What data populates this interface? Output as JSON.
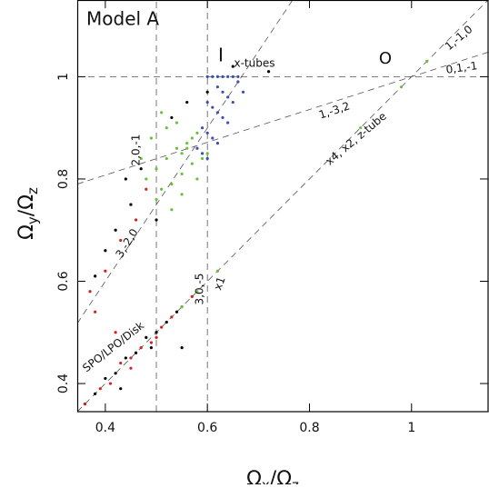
{
  "chart_data": {
    "type": "scatter",
    "title": "Model A",
    "xlabel": [
      "Ω",
      "x",
      "/Ω",
      "z"
    ],
    "ylabel": [
      "Ω",
      "y",
      "/Ω",
      "z"
    ],
    "xlim": [
      0.345,
      1.15
    ],
    "ylim": [
      0.345,
      1.15
    ],
    "xticks": [
      0.4,
      0.6,
      0.8,
      1
    ],
    "yticks": [
      0.4,
      0.6,
      0.8,
      1
    ],
    "lines": [
      {
        "x": [
          0.5,
          0.5
        ],
        "y": [
          0.345,
          1.15
        ]
      },
      {
        "x": [
          0.6,
          0.6
        ],
        "y": [
          0.345,
          1.15
        ]
      },
      {
        "x": [
          0.345,
          1.15
        ],
        "y": [
          1,
          1
        ]
      },
      {
        "x": [
          0.345,
          1.15
        ],
        "y": [
          0.345,
          1.15
        ]
      },
      {
        "x": [
          0.345,
          1.15
        ],
        "y": [
          0.79,
          1.048
        ]
      },
      {
        "x": [
          0.345,
          0.767
        ],
        "y": [
          0.5175,
          1.15
        ]
      }
    ],
    "annotations": [
      "I",
      "x-tubes",
      "O",
      "1,-1,0",
      "0,1,-1",
      "1,-3,2",
      "x4, x2, z-tube",
      "2,0,-1",
      "3,-2,0",
      "3,0,-5",
      "x1",
      "SPO/LPO/Disk"
    ],
    "series": [
      {
        "color": "#000000",
        "x": [
          0.36,
          0.38,
          0.4,
          0.42,
          0.44,
          0.46,
          0.48,
          0.5,
          0.52,
          0.54,
          0.42,
          0.45,
          0.4,
          0.44,
          0.47,
          0.5,
          0.53,
          0.56,
          0.6,
          0.65,
          0.72,
          0.38,
          0.43,
          0.55,
          0.49
        ],
        "y": [
          0.36,
          0.38,
          0.41,
          0.42,
          0.45,
          0.46,
          0.49,
          0.5,
          0.52,
          0.54,
          0.7,
          0.75,
          0.66,
          0.8,
          0.82,
          0.72,
          0.92,
          0.95,
          0.97,
          1.02,
          1.01,
          0.61,
          0.39,
          0.47,
          0.47
        ]
      },
      {
        "color": "#d42020",
        "x": [
          0.36,
          0.39,
          0.41,
          0.43,
          0.45,
          0.47,
          0.49,
          0.51,
          0.53,
          0.55,
          0.57,
          0.38,
          0.4,
          0.43,
          0.46,
          0.48,
          0.37,
          0.42,
          0.45,
          0.5
        ],
        "y": [
          0.36,
          0.39,
          0.4,
          0.44,
          0.45,
          0.47,
          0.48,
          0.51,
          0.53,
          0.55,
          0.57,
          0.54,
          0.62,
          0.68,
          0.72,
          0.78,
          0.58,
          0.5,
          0.43,
          0.49
        ]
      },
      {
        "color": "#6cbf3c",
        "x": [
          0.48,
          0.5,
          0.52,
          0.54,
          0.55,
          0.56,
          0.57,
          0.58,
          0.5,
          0.51,
          0.53,
          0.55,
          0.57,
          0.59,
          0.49,
          0.52,
          0.54,
          0.56,
          0.58,
          0.6,
          0.47,
          0.51,
          0.53,
          0.55,
          0.9,
          0.98,
          1.03,
          0.62,
          0.58,
          0.55
        ],
        "y": [
          0.8,
          0.82,
          0.84,
          0.86,
          0.85,
          0.87,
          0.88,
          0.89,
          0.76,
          0.78,
          0.79,
          0.81,
          0.83,
          0.84,
          0.88,
          0.9,
          0.91,
          0.86,
          0.8,
          0.85,
          0.84,
          0.93,
          0.74,
          0.77,
          0.9,
          0.98,
          1.03,
          0.62,
          0.58,
          0.55
        ]
      },
      {
        "color": "#3a4fb0",
        "x": [
          0.6,
          0.61,
          0.62,
          0.63,
          0.64,
          0.65,
          0.66,
          0.62,
          0.63,
          0.64,
          0.65,
          0.6,
          0.61,
          0.62,
          0.63,
          0.64,
          0.59,
          0.6,
          0.61,
          0.62,
          0.58,
          0.59,
          0.6,
          0.66,
          0.67
        ],
        "y": [
          1.0,
          1.0,
          1.0,
          1.0,
          1.0,
          1.0,
          1.0,
          0.98,
          0.97,
          0.96,
          0.95,
          0.95,
          0.94,
          0.93,
          0.92,
          0.91,
          0.9,
          0.89,
          0.88,
          0.87,
          0.86,
          0.85,
          0.84,
          0.99,
          0.97
        ]
      }
    ]
  }
}
